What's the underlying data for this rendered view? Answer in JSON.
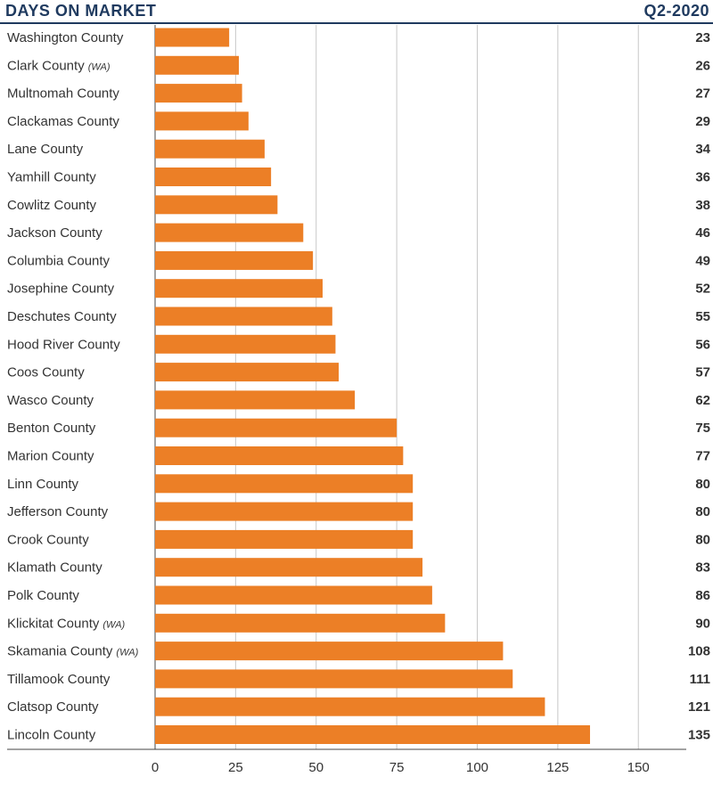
{
  "chart_data": {
    "type": "bar",
    "orientation": "horizontal",
    "title": "DAYS ON MARKET",
    "period": "Q2-2020",
    "categories": [
      {
        "name": "Washington County",
        "qualifier": ""
      },
      {
        "name": "Clark County",
        "qualifier": "(WA)"
      },
      {
        "name": "Multnomah County",
        "qualifier": ""
      },
      {
        "name": "Clackamas County",
        "qualifier": ""
      },
      {
        "name": "Lane County",
        "qualifier": ""
      },
      {
        "name": "Yamhill County",
        "qualifier": ""
      },
      {
        "name": "Cowlitz County",
        "qualifier": ""
      },
      {
        "name": "Jackson County",
        "qualifier": ""
      },
      {
        "name": "Columbia County",
        "qualifier": ""
      },
      {
        "name": "Josephine County",
        "qualifier": ""
      },
      {
        "name": "Deschutes County",
        "qualifier": ""
      },
      {
        "name": "Hood River County",
        "qualifier": ""
      },
      {
        "name": "Coos County",
        "qualifier": ""
      },
      {
        "name": "Wasco County",
        "qualifier": ""
      },
      {
        "name": "Benton County",
        "qualifier": ""
      },
      {
        "name": "Marion County",
        "qualifier": ""
      },
      {
        "name": "Linn County",
        "qualifier": ""
      },
      {
        "name": "Jefferson County",
        "qualifier": ""
      },
      {
        "name": "Crook County",
        "qualifier": ""
      },
      {
        "name": "Klamath County",
        "qualifier": ""
      },
      {
        "name": "Polk County",
        "qualifier": ""
      },
      {
        "name": "Klickitat County",
        "qualifier": "(WA)"
      },
      {
        "name": "Skamania County",
        "qualifier": "(WA)"
      },
      {
        "name": "Tillamook County",
        "qualifier": ""
      },
      {
        "name": "Clatsop County",
        "qualifier": ""
      },
      {
        "name": "Lincoln County",
        "qualifier": ""
      }
    ],
    "values": [
      23,
      26,
      27,
      29,
      34,
      36,
      38,
      46,
      49,
      52,
      55,
      56,
      57,
      62,
      75,
      77,
      80,
      80,
      80,
      83,
      86,
      90,
      108,
      111,
      121,
      135
    ],
    "xticks": [
      0,
      25,
      50,
      75,
      100,
      125,
      150
    ],
    "xlim": [
      0,
      165
    ],
    "grid": true,
    "colors": {
      "bar": "#ec7f26",
      "title": "#1f3a5f",
      "grid": "#c8c8c8",
      "text": "#333333"
    }
  }
}
